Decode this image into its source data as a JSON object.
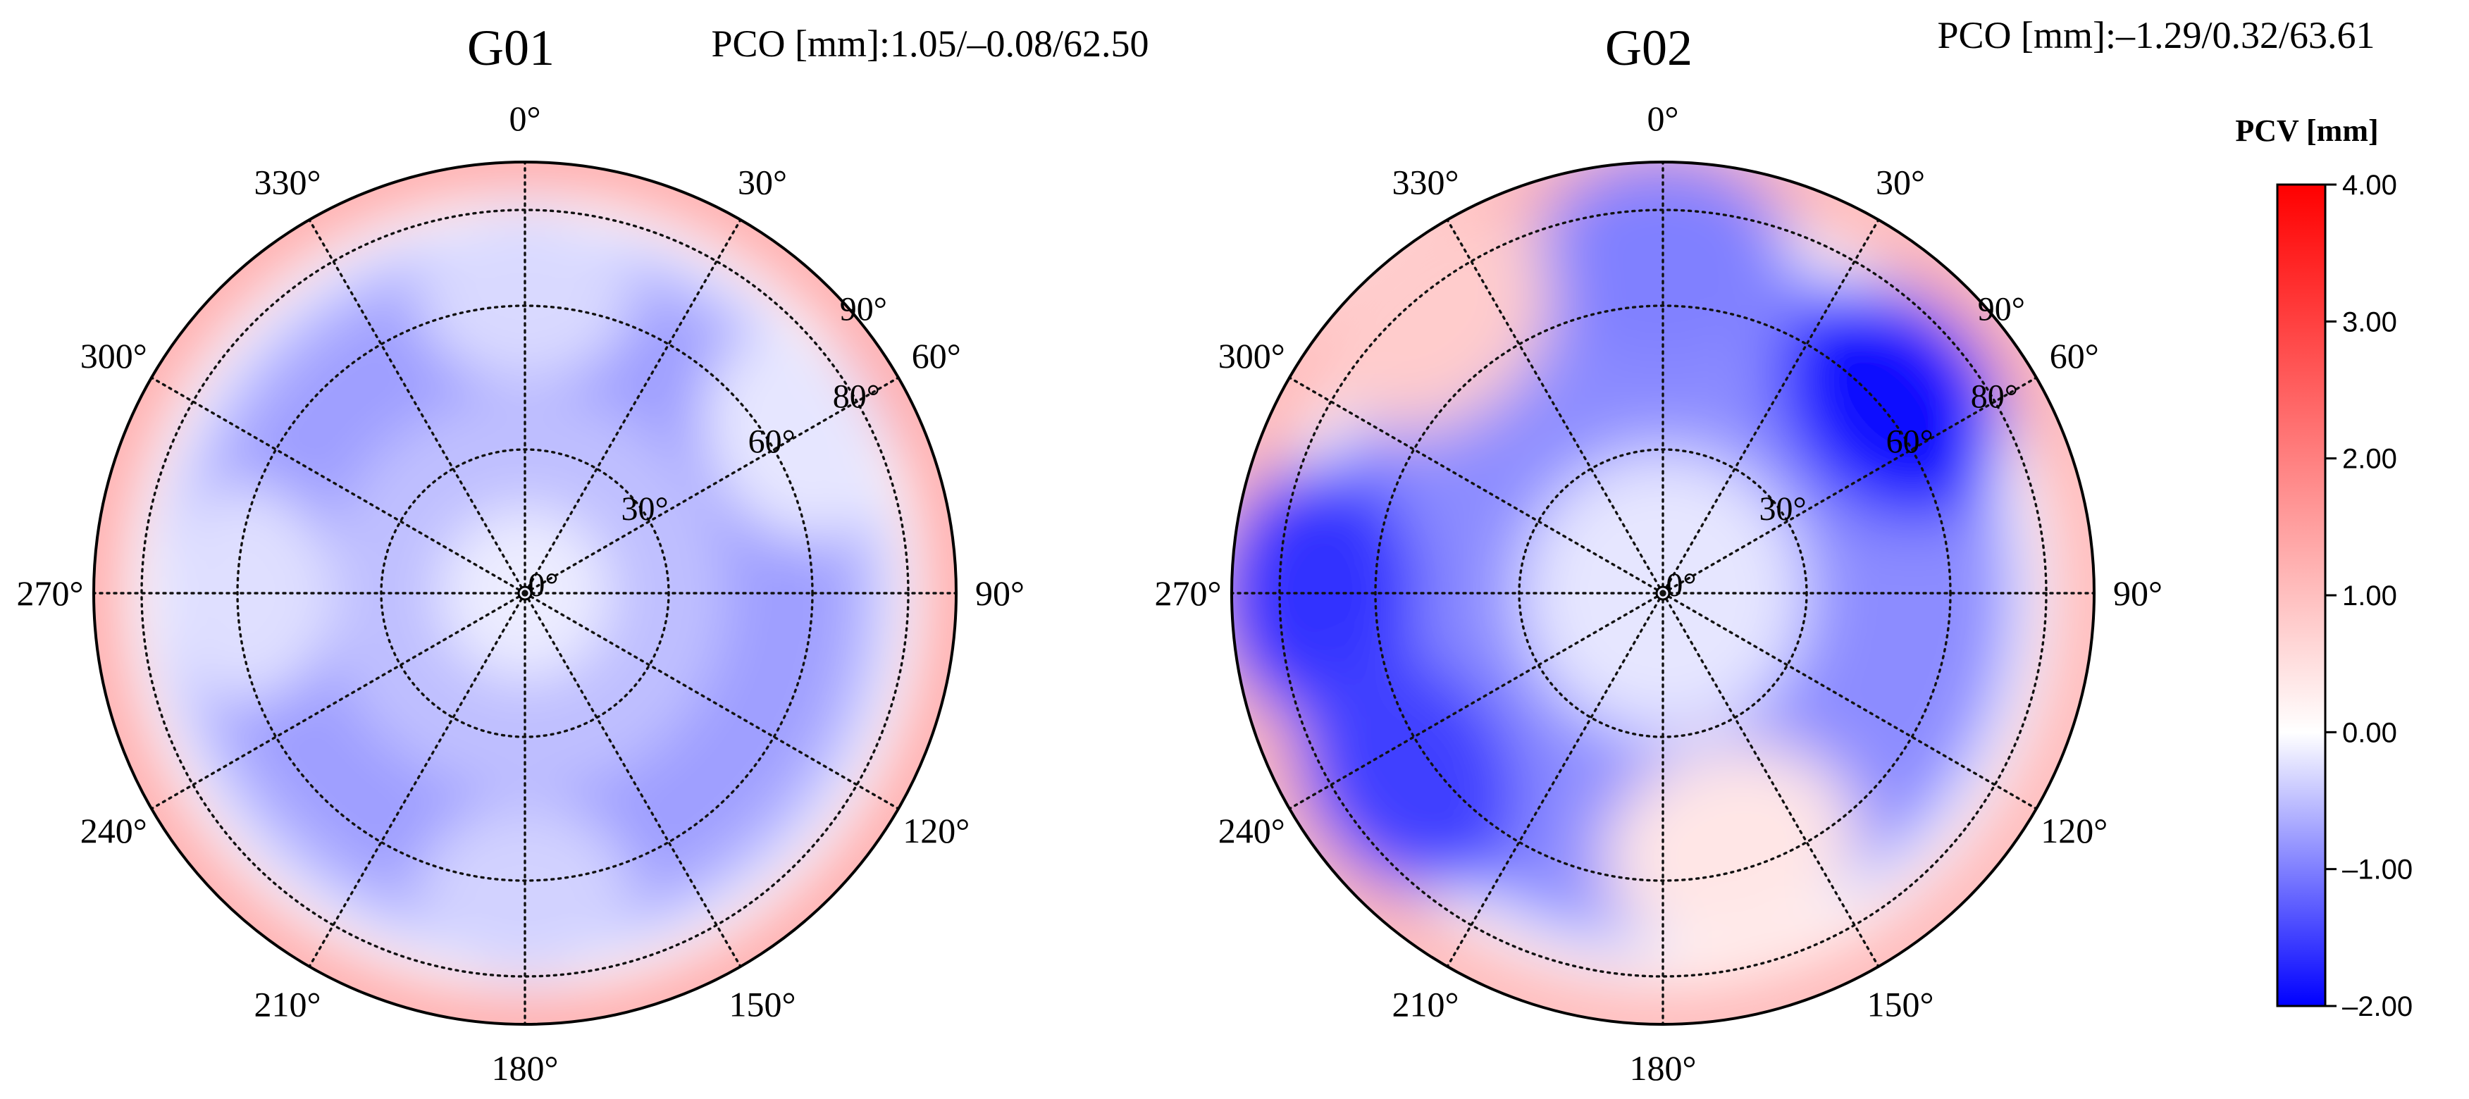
{
  "chart_data": [
    {
      "type": "polar-heatmap",
      "title": "G01",
      "pco_text": "PCO [mm]:1.05/–0.08/62.50",
      "azimuth_ticks": [
        "0°",
        "30°",
        "60°",
        "90°",
        "120°",
        "150°",
        "180°",
        "210°",
        "240°",
        "270°",
        "300°",
        "330°"
      ],
      "zenith_ticks": [
        "0°",
        "30°",
        "60°",
        "80°",
        "90°"
      ],
      "zenith_range": [
        0,
        90
      ],
      "pcv_field": {
        "center": -0.15,
        "ring30": -0.5,
        "ring60": -0.75,
        "ring75": -0.5,
        "ring82": 0.0,
        "edge": 1.3,
        "lobes": [
          {
            "azimuth": 0,
            "zenith": 62,
            "value": -0.3
          },
          {
            "azimuth": 180,
            "zenith": 62,
            "value": -0.35
          },
          {
            "azimuth": 270,
            "zenith": 58,
            "value": -0.25
          },
          {
            "azimuth": 60,
            "zenith": 65,
            "value": -0.2
          }
        ]
      }
    },
    {
      "type": "polar-heatmap",
      "title": "G02",
      "pco_text": "PCO [mm]:–1.29/0.32/63.61",
      "azimuth_ticks": [
        "0°",
        "30°",
        "60°",
        "90°",
        "120°",
        "150°",
        "180°",
        "210°",
        "240°",
        "270°",
        "300°",
        "330°"
      ],
      "zenith_ticks": [
        "0°",
        "30°",
        "60°",
        "80°",
        "90°"
      ],
      "zenith_range": [
        0,
        90
      ],
      "pcv_field": {
        "center": -0.2,
        "edge": 1.2,
        "lobes": [
          {
            "azimuth": 50,
            "zenith": 62,
            "value": -1.9
          },
          {
            "azimuth": 270,
            "zenith": 72,
            "value": -1.6
          },
          {
            "azimuth": 235,
            "zenith": 65,
            "value": -1.5
          },
          {
            "azimuth": 0,
            "zenith": 70,
            "value": -1.0
          },
          {
            "azimuth": 320,
            "zenith": 75,
            "value": 0.8
          },
          {
            "azimuth": 165,
            "zenith": 55,
            "value": 0.4
          }
        ]
      }
    }
  ],
  "colorbar": {
    "title": "PCV [mm]",
    "range": [
      -2.0,
      4.0
    ],
    "ticks": [
      "4.00",
      "3.00",
      "2.00",
      "1.00",
      "0.00",
      "–1.00",
      "–2.00"
    ],
    "tick_values": [
      4,
      3,
      2,
      1,
      0,
      -1,
      -2
    ],
    "colormap": "bwr",
    "colors": {
      "low": "#0000ff",
      "mid": "#ffffff",
      "high": "#ff0000"
    }
  }
}
